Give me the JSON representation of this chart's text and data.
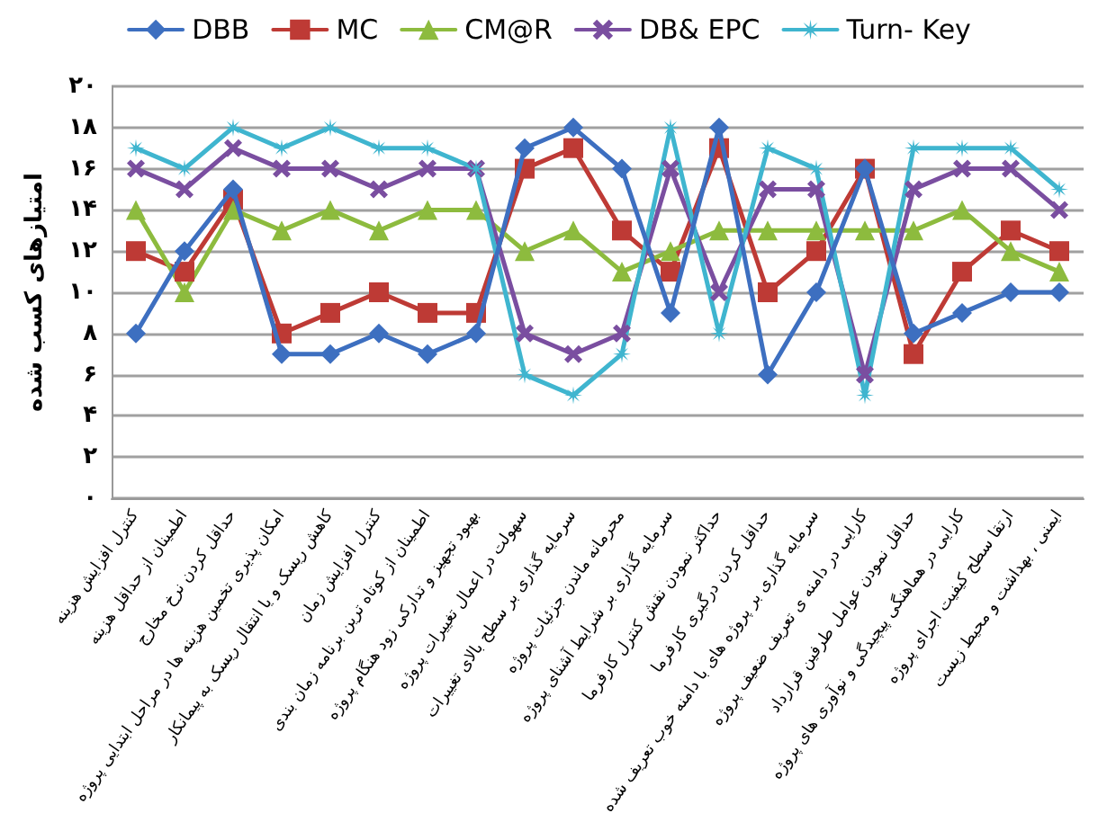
{
  "chart_data": {
    "type": "line",
    "ylabel": "امتیازهای کسب شده",
    "categories": [
      "کنترل افزایش هزینه",
      "اطمینان از حداقل هزینه",
      "حداقل کردن نرخ مخارج",
      "امکان پذیری تخمین هزینه ها در مراحل ابتدایی پروژه",
      "کاهش ریسک و یا انتقال ریسک به پیمانکار",
      "کنترل افزایش زمان",
      "اطمینان از کوتاه ترین برنامه زمان بندی",
      "بهبود تجهیز و تدارکی زود هنگام پروژه",
      "سهولت در اعمال تغییرات پروژه",
      "سرمایه گذاری بر سطح بالای تغییرات",
      "محرمانه ماندن جزئیات پروژه",
      "سرمایه گذاری بر شرایط آشنای پروژه",
      "حداکثر نمودن نقش کنترل کارفرما",
      "حداقل کردن درگیری کارفرما",
      "سرمایه گذاری بر پروژه های با دامنه خوب تعریف شده",
      "کارایی در دامنه ی تعریف ضعیف پروژه",
      "حداقل نمودن عوامل طرفین قرارداد",
      "کارایی در هماهنگی پیچیدگی و نوآوری های پروژه",
      "ارتقا سطح کیفیت اجرای پروژه",
      "ایمنی ، بهداشت و محیط زیست"
    ],
    "series": [
      {
        "name": "DBB",
        "color": "#3d6fc0",
        "marker": "diamond",
        "values": [
          8,
          12,
          15,
          7,
          7,
          8,
          7,
          8,
          17,
          18,
          16,
          9,
          18,
          6,
          10,
          16,
          8,
          9,
          10,
          10
        ]
      },
      {
        "name": "MC",
        "color": "#be3a35",
        "marker": "square",
        "values": [
          12,
          11,
          14.5,
          8,
          9,
          10,
          9,
          9,
          16,
          17,
          13,
          11,
          17,
          10,
          12,
          16,
          7,
          11,
          13,
          12
        ]
      },
      {
        "name": "CM@R",
        "color": "#8dbb3e",
        "marker": "triangle",
        "values": [
          14,
          10,
          14,
          13,
          14,
          13,
          14,
          14,
          12,
          13,
          11,
          12,
          13,
          13,
          13,
          13,
          13,
          14,
          12,
          11
        ]
      },
      {
        "name": "DB& EPC",
        "color": "#7a4ea0",
        "marker": "cross",
        "values": [
          16,
          15,
          17,
          16,
          16,
          15,
          16,
          16,
          8,
          7,
          8,
          16,
          10,
          15,
          15,
          6,
          15,
          16,
          16,
          14
        ]
      },
      {
        "name": "Turn- Key",
        "color": "#3fb5cf",
        "marker": "star",
        "values": [
          17,
          16,
          18,
          17,
          18,
          17,
          17,
          16,
          6,
          5,
          7,
          18,
          8,
          17,
          16,
          5,
          17,
          17,
          17,
          15
        ]
      }
    ],
    "ylim": [
      0,
      20
    ],
    "yticks": [
      {
        "value": 0,
        "label": "۰"
      },
      {
        "value": 2,
        "label": "۲"
      },
      {
        "value": 4,
        "label": "۴"
      },
      {
        "value": 6,
        "label": "۶"
      },
      {
        "value": 8,
        "label": "۸"
      },
      {
        "value": 10,
        "label": "۱۰"
      },
      {
        "value": 12,
        "label": "۱۲"
      },
      {
        "value": 14,
        "label": "۱۴"
      },
      {
        "value": 16,
        "label": "۱۶"
      },
      {
        "value": 18,
        "label": "۱۸"
      },
      {
        "value": 20,
        "label": "۲۰"
      }
    ],
    "grid": "y",
    "legend": "top",
    "line_style": "solid"
  }
}
